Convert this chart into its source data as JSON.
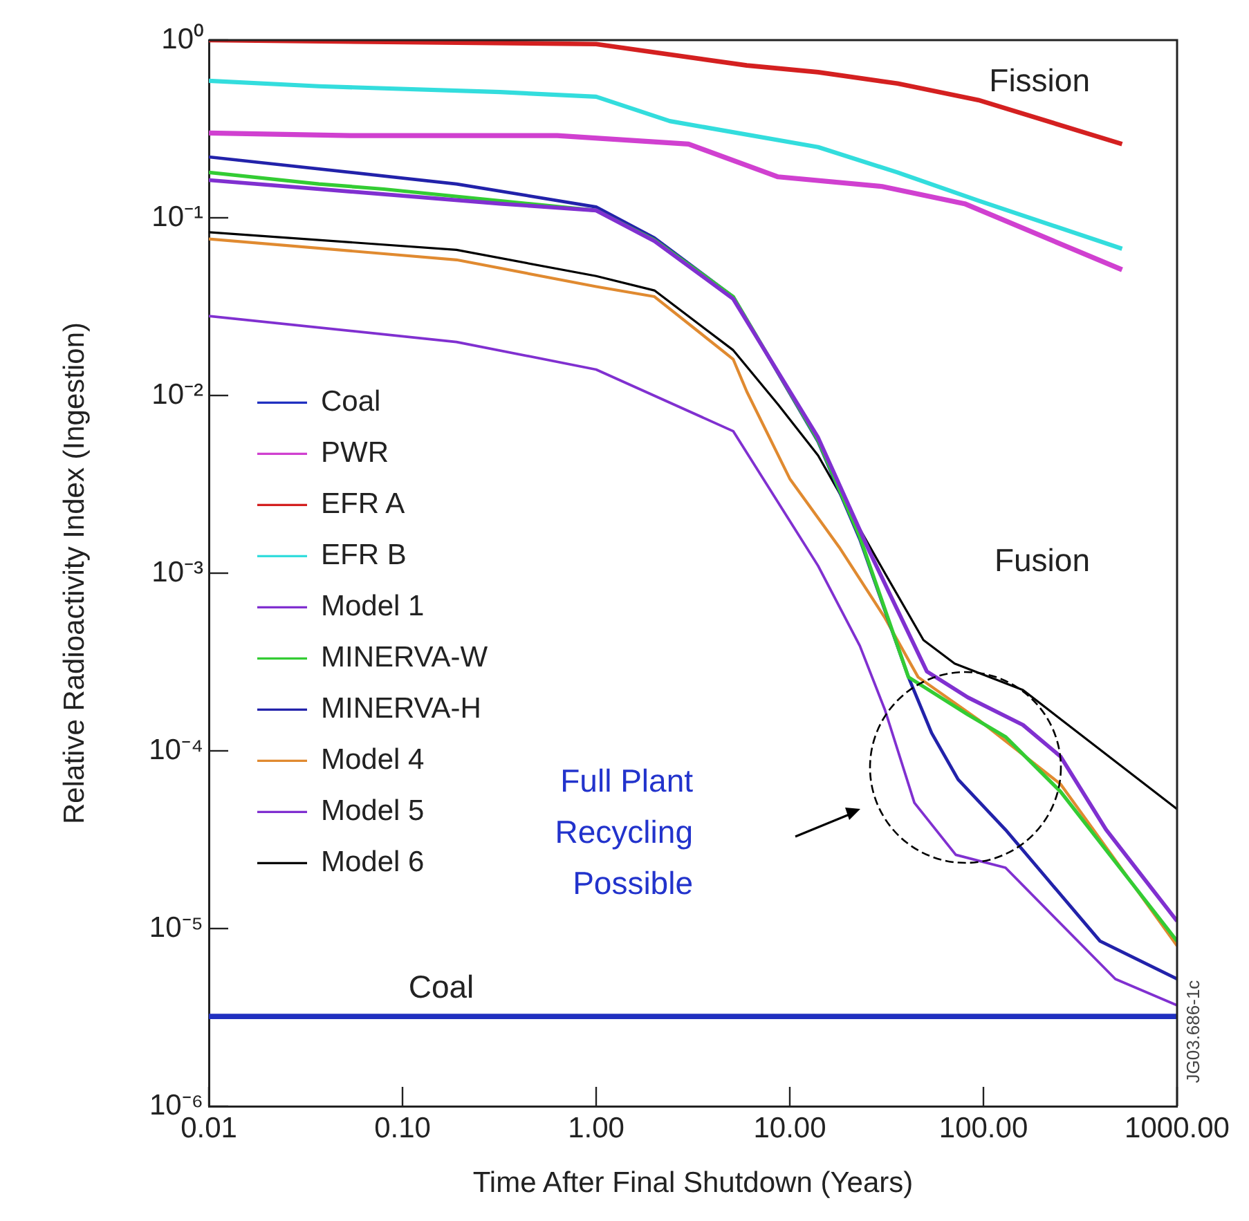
{
  "chart_data": {
    "type": "line",
    "xlabel": "Time After Final Shutdown (Years)",
    "ylabel": "Relative Radioactivity Index (Ingestion)",
    "log": "xy",
    "xlim": [
      0.01,
      1000
    ],
    "ylim": [
      1e-06,
      1
    ],
    "xticks": [
      0.01,
      {
        "value": 0.1,
        "label": "0.10"
      },
      {
        "value": 1,
        "label": "1.00"
      },
      {
        "value": 10,
        "label": "10.00"
      },
      {
        "value": 100,
        "label": "100.00"
      },
      {
        "value": 1000,
        "label": "1000.00"
      }
    ],
    "yticks": [
      {
        "value": 1e-06,
        "label": "10⁻⁶"
      },
      {
        "value": 1e-05,
        "label": "10⁻⁵"
      },
      {
        "value": 0.0001,
        "label": "10⁻⁴"
      },
      {
        "value": 0.001,
        "label": "10⁻³"
      },
      {
        "value": 0.01,
        "label": "10⁻²"
      },
      {
        "value": 0.1,
        "label": "10⁻¹"
      },
      {
        "value": 1,
        "label": "10⁰"
      }
    ],
    "grid": false,
    "legend": "left",
    "annotations": [
      "Fission",
      "Fusion",
      "Coal",
      "Full Plant\nRecycling\nPossible",
      "JG03.686-1c"
    ],
    "series": [
      {
        "name": "Coal",
        "color": "#2030c0",
        "x": [
          0.01,
          1000
        ],
        "values": [
          3.2e-06,
          3.2e-06
        ]
      },
      {
        "name": "PWR",
        "color": "#d040d0",
        "x": [
          0.01,
          0.054,
          0.63,
          3,
          8.7,
          30,
          80,
          520
        ],
        "values": [
          0.3,
          0.29,
          0.29,
          0.26,
          0.17,
          0.15,
          0.12,
          0.051
        ]
      },
      {
        "name": "EFR A",
        "color": "#d42020",
        "x": [
          0.01,
          1,
          6,
          14,
          36,
          94,
          520
        ],
        "values": [
          1,
          0.95,
          0.72,
          0.66,
          0.57,
          0.46,
          0.26
        ]
      },
      {
        "name": "EFR B",
        "color": "#33dddd",
        "x": [
          0.01,
          0.037,
          0.32,
          1,
          2.4,
          14,
          36,
          94,
          520
        ],
        "values": [
          0.59,
          0.55,
          0.51,
          0.48,
          0.35,
          0.25,
          0.18,
          0.125,
          0.067
        ]
      },
      {
        "name": "Model 1",
        "color": "#8030d0",
        "x": [
          0.01,
          0.32,
          1,
          2,
          5.1,
          14,
          26,
          51,
          83,
          160,
          250,
          430,
          1000
        ],
        "values": [
          0.163,
          0.12,
          0.11,
          0.074,
          0.035,
          0.0058,
          0.0013,
          0.00028,
          0.0002,
          0.00014,
          9.3e-05,
          3.6e-05,
          1.1e-05
        ]
      },
      {
        "name": "MINERVA-W",
        "color": "#33cc33",
        "x": [
          0.01,
          0.037,
          0.08,
          1,
          2,
          5.1,
          14,
          23,
          41,
          83,
          130,
          250,
          1000
        ],
        "values": [
          0.18,
          0.155,
          0.145,
          0.11,
          0.075,
          0.036,
          0.0056,
          0.0016,
          0.00026,
          0.00016,
          0.00012,
          5.9e-05,
          8.5e-06
        ]
      },
      {
        "name": "MINERVA-H",
        "color": "#2222aa",
        "x": [
          0.01,
          0.19,
          1,
          2,
          5.1,
          14,
          23,
          41,
          54,
          74,
          130,
          400,
          1000
        ],
        "values": [
          0.22,
          0.155,
          0.115,
          0.077,
          0.036,
          0.0055,
          0.00155,
          0.00026,
          0.000126,
          6.9e-05,
          3.6e-05,
          8.5e-06,
          5.2e-06
        ]
      },
      {
        "name": "Model 4",
        "color": "#e08a30",
        "x": [
          0.01,
          0.19,
          1,
          2,
          5.1,
          6,
          10,
          18,
          31,
          46,
          94,
          250,
          1000
        ],
        "values": [
          0.076,
          0.058,
          0.041,
          0.036,
          0.016,
          0.0105,
          0.0034,
          0.0014,
          0.00056,
          0.00026,
          0.00015,
          6.5e-05,
          8e-06
        ]
      },
      {
        "name": "Model 5",
        "color": "#8030d0",
        "x": [
          0.01,
          0.19,
          1,
          5.1,
          14,
          23,
          31,
          44,
          72,
          130,
          480,
          1000
        ],
        "values": [
          0.028,
          0.02,
          0.014,
          0.0063,
          0.0011,
          0.00039,
          0.00017,
          5.1e-05,
          2.6e-05,
          2.2e-05,
          5.2e-06,
          3.7e-06
        ]
      },
      {
        "name": "Model 6",
        "color": "#000000",
        "x": [
          0.01,
          0.19,
          1,
          2,
          5.1,
          8.7,
          14,
          31,
          49,
          71,
          160,
          1000
        ],
        "values": [
          0.083,
          0.066,
          0.047,
          0.039,
          0.018,
          0.0089,
          0.0046,
          0.001,
          0.00042,
          0.00031,
          0.00022,
          4.7e-05
        ]
      }
    ]
  }
}
